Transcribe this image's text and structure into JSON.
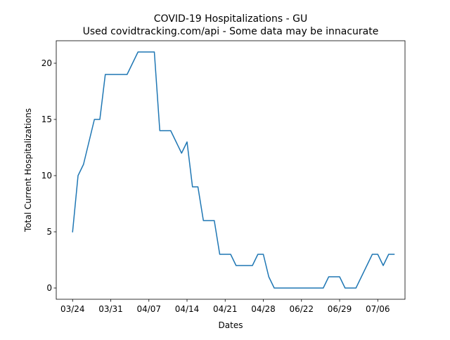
{
  "chart_data": {
    "type": "line",
    "title": "COVID-19 Hospitalizations - GU",
    "subtitle": "Used covidtracking.com/api - Some data may be innacurate",
    "xlabel": "Dates",
    "ylabel": "Total Current Hospitalizations",
    "ylim": [
      -1,
      22
    ],
    "y_ticks": [
      0,
      5,
      10,
      15,
      20
    ],
    "x_ticks": [
      {
        "label": "03/24",
        "x": 0
      },
      {
        "label": "03/31",
        "x": 7
      },
      {
        "label": "04/07",
        "x": 14
      },
      {
        "label": "04/14",
        "x": 21
      },
      {
        "label": "04/21",
        "x": 28
      },
      {
        "label": "04/28",
        "x": 35
      },
      {
        "label": "06/22",
        "x": 42
      },
      {
        "label": "06/29",
        "x": 49
      },
      {
        "label": "07/06",
        "x": 56
      }
    ],
    "xlim": [
      -3,
      61
    ],
    "grid": false,
    "legend": "none",
    "series": [
      {
        "color": "#1f77b4",
        "x": [
          0,
          1,
          2,
          3,
          4,
          5,
          6,
          7,
          8,
          9,
          10,
          11,
          12,
          13,
          14,
          15,
          16,
          17,
          18,
          19,
          20,
          21,
          22,
          23,
          24,
          25,
          26,
          27,
          28,
          29,
          30,
          31,
          32,
          33,
          34,
          35,
          36,
          37,
          38,
          39,
          40,
          41,
          42,
          43,
          44,
          45,
          46,
          47,
          48,
          49,
          50,
          51,
          52,
          53,
          54,
          55,
          56,
          57,
          58,
          59
        ],
        "y": [
          5,
          10,
          11,
          13,
          15,
          15,
          19,
          19,
          19,
          19,
          19,
          20,
          21,
          21,
          21,
          21,
          14,
          14,
          14,
          13,
          12,
          13,
          9,
          9,
          6,
          6,
          6,
          3,
          3,
          3,
          2,
          2,
          2,
          2,
          3,
          3,
          1,
          0,
          0,
          0,
          0,
          0,
          0,
          0,
          0,
          0,
          0,
          1,
          1,
          1,
          0,
          0,
          0,
          1,
          2,
          3,
          3,
          2,
          3,
          3
        ]
      }
    ]
  }
}
